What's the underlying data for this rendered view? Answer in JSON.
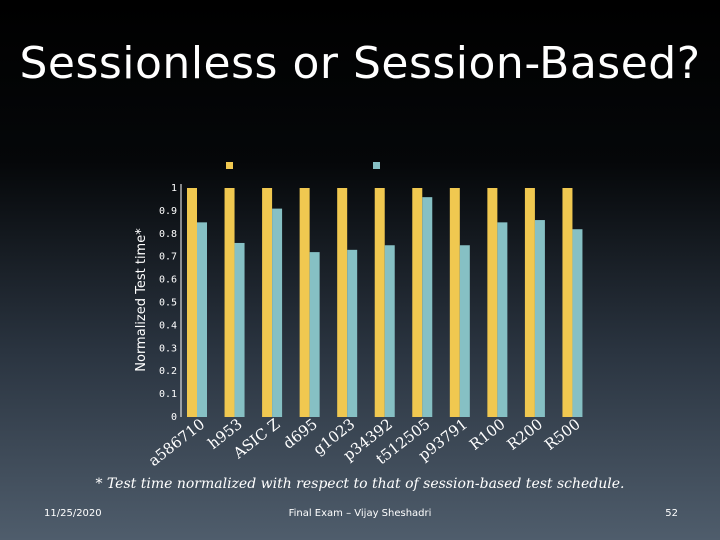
{
  "slide": {
    "title": "Sessionless or Session-Based?",
    "footnote": "* Test time normalized with respect to that of session-based test schedule.",
    "footer_date": "11/25/2020",
    "footer_center": "Final Exam – Vijay Sheshadri",
    "page_number": "52"
  },
  "colors": {
    "series_a": "#f0c850",
    "series_b": "#86c0c4",
    "axis": "#ffffff"
  },
  "chart_data": {
    "type": "bar",
    "ylabel": "Normalized Test time*",
    "ylim": [
      0,
      1
    ],
    "yticks": [
      "0",
      "0.1",
      "0.2",
      "0.3",
      "0.4",
      "0.5",
      "0.6",
      "0.7",
      "0.8",
      "0.9",
      "1"
    ],
    "categories": [
      "a586710",
      "h953",
      "ASIC Z",
      "d695",
      "g1023",
      "p34392",
      "t512505",
      "p93791",
      "R100",
      "R200",
      "R500"
    ],
    "series": [
      {
        "values": [
          1,
          1,
          1,
          1,
          1,
          1,
          1,
          1,
          1,
          1,
          1
        ]
      },
      {
        "values": [
          0.85,
          0.76,
          0.91,
          0.72,
          0.73,
          0.75,
          0.96,
          0.75,
          0.85,
          0.86,
          0.82
        ]
      }
    ]
  }
}
